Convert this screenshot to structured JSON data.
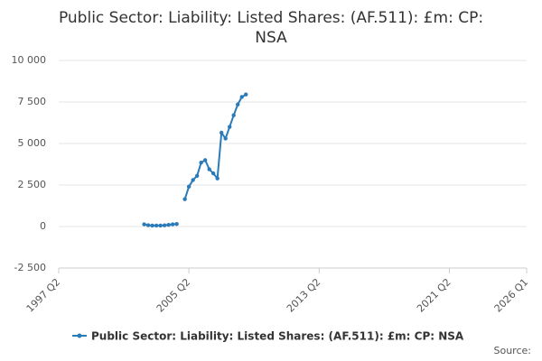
{
  "chart_data": {
    "type": "line",
    "title": [
      "Public Sector: Liability: Listed Shares: (AF.511): £m: CP:",
      "NSA"
    ],
    "x": [
      "2002 Q3",
      "2002 Q4",
      "2003 Q1",
      "2003 Q2",
      "2003 Q3",
      "2003 Q4",
      "2004 Q1",
      "2004 Q2",
      "2004 Q3",
      "2004 Q4",
      "2005 Q1",
      "2005 Q2",
      "2005 Q3",
      "2005 Q4",
      "2006 Q1",
      "2006 Q2",
      "2006 Q3",
      "2006 Q4",
      "2007 Q1",
      "2007 Q2",
      "2007 Q3",
      "2007 Q4",
      "2008 Q1",
      "2008 Q2",
      "2008 Q3",
      "2008 Q4"
    ],
    "series": [
      {
        "name": "Public Sector: Liability: Listed Shares: (AF.511): £m: CP: NSA",
        "color": "#2b7bb9",
        "values": [
          130,
          80,
          60,
          60,
          60,
          70,
          100,
          130,
          150,
          null,
          1650,
          2400,
          2800,
          3050,
          3850,
          4000,
          3450,
          3200,
          2900,
          5650,
          5300,
          6000,
          6700,
          7350,
          7800,
          7950
        ]
      }
    ],
    "xlim": [
      "1997 Q2",
      "2026 Q1"
    ],
    "xticks": [
      "1997 Q2",
      "2005 Q2",
      "2013 Q2",
      "2021 Q2",
      "2026 Q1"
    ],
    "ylim": [
      -2500,
      10000
    ],
    "yticks": [
      {
        "value": -2500,
        "label": "-2 500"
      },
      0,
      {
        "value": 2500,
        "label": "2 500"
      },
      {
        "value": 5000,
        "label": "5 000"
      },
      {
        "value": 7500,
        "label": "7 500"
      },
      {
        "value": 10000,
        "label": "10 000"
      }
    ],
    "grid": true,
    "source": "Source:"
  }
}
